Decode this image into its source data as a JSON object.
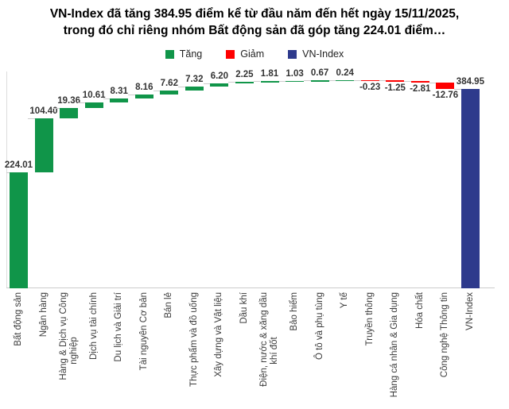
{
  "title": {
    "line1": "VN-Index đã tăng 384.95 điểm kể từ đầu năm đến hết ngày 15/11/2025,",
    "line2": "trong đó chỉ riêng nhóm Bất động sản đã góp tăng 224.01 điểm…"
  },
  "legend": {
    "items": [
      {
        "label": "Tăng",
        "type": "increase",
        "color": "#109549"
      },
      {
        "label": "Giảm",
        "type": "decrease",
        "color": "#fe0000"
      },
      {
        "label": "VN-Index",
        "type": "total",
        "color": "#2e3a8c"
      }
    ]
  },
  "chart_data": {
    "type": "bar",
    "subtype": "waterfall",
    "title": "VN-Index đã tăng 384.95 điểm kể từ đầu năm đến hết ngày 15/11/2025, trong đó chỉ riêng nhóm Bất động sản đã góp tăng 224.01 điểm…",
    "categories": [
      "Bất động sản",
      "Ngân hàng",
      "Hàng & Dịch vụ Công\nnghiệp",
      "Dịch vụ tài chính",
      "Du lịch và Giải trí",
      "Tài nguyên Cơ bản",
      "Bán lẻ",
      "Thực phẩm và đồ uống",
      "Xây dựng và Vật liệu",
      "Dầu khí",
      "Điện, nước & xăng dầu\nkhí đốt",
      "Bảo hiểm",
      "Ô tô và phụ tùng",
      "Y tế",
      "Truyền thông",
      "Hàng cá nhân & Gia dụng",
      "Hóa chất",
      "Công nghệ Thông tin",
      "VN-Index"
    ],
    "values": [
      224.01,
      104.4,
      19.36,
      10.61,
      8.31,
      8.16,
      7.62,
      7.32,
      6.2,
      2.25,
      1.81,
      1.03,
      0.67,
      0.24,
      -0.23,
      -1.25,
      -2.81,
      -12.76,
      384.95
    ],
    "bar_types": [
      "increase",
      "increase",
      "increase",
      "increase",
      "increase",
      "increase",
      "increase",
      "increase",
      "increase",
      "increase",
      "increase",
      "increase",
      "increase",
      "increase",
      "decrease",
      "decrease",
      "decrease",
      "decrease",
      "total"
    ],
    "colors": {
      "increase": "#109549",
      "decrease": "#fe0000",
      "total": "#2e3a8c"
    },
    "ylim": [
      0,
      402
    ],
    "grid": false,
    "legend_position": "top"
  }
}
